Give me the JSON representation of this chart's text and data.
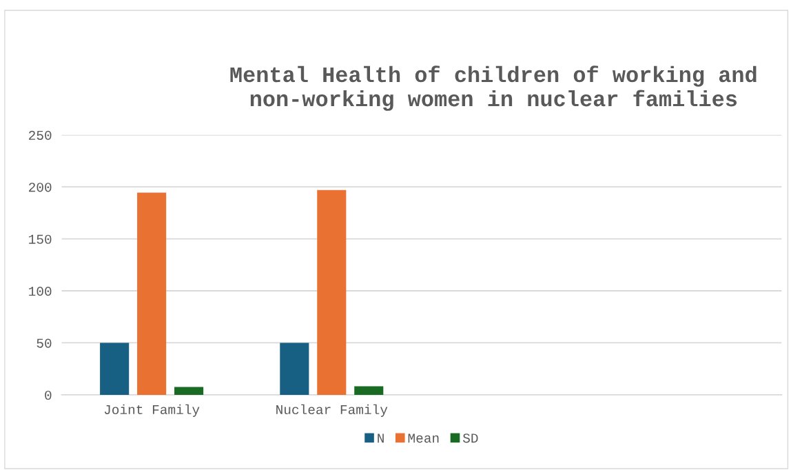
{
  "chart_data": {
    "type": "bar",
    "title": "Mental Health of children of working and\nnon-working women in nuclear families",
    "categories": [
      "Joint Family",
      "Nuclear Family",
      null,
      null
    ],
    "series": [
      {
        "name": "N",
        "color": "#175f83",
        "values": [
          50,
          50,
          null,
          null
        ]
      },
      {
        "name": "Mean",
        "color": "#e97132",
        "values": [
          194.5,
          197,
          null,
          null
        ]
      },
      {
        "name": "SD",
        "color": "#196b24",
        "values": [
          7.5,
          8.2,
          null,
          null
        ]
      }
    ],
    "ylim": [
      0,
      250
    ],
    "yticks": [
      0,
      50,
      100,
      150,
      200,
      250
    ],
    "grid": "y",
    "legend": "bottom"
  }
}
